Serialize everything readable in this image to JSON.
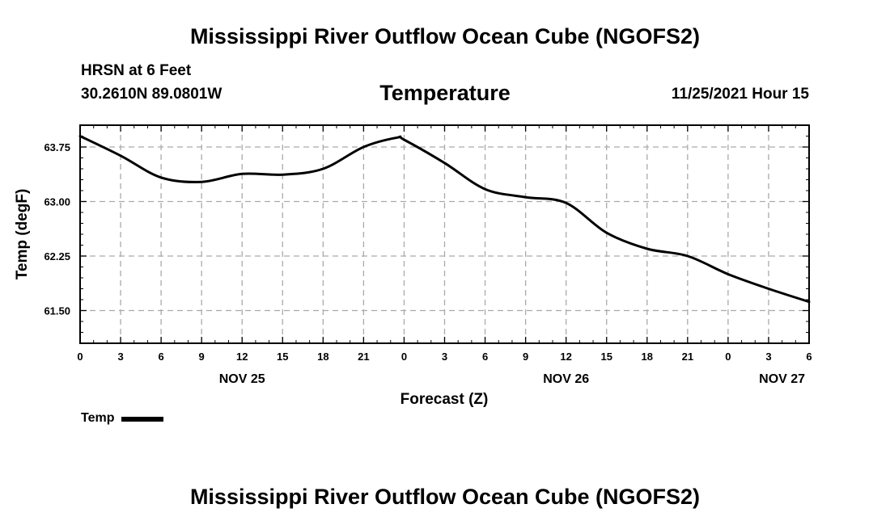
{
  "header": {
    "title": "Mississippi River Outflow Ocean Cube (NGOFS2)",
    "station": "HRSN at 6 Feet",
    "coords": "30.2610N  89.0801W",
    "parameter": "Temperature",
    "run_time": "11/25/2021 Hour 15"
  },
  "footer": {
    "title": "Mississippi River Outflow Ocean Cube (NGOFS2)"
  },
  "legend": {
    "label": "Temp",
    "color": "#000000"
  },
  "chart_data": {
    "type": "line",
    "title": "Temperature",
    "xlabel": "Forecast (Z)",
    "ylabel": "Temp (degF)",
    "xlim": [
      0,
      54
    ],
    "ylim": [
      61.05,
      64.05
    ],
    "grid": true,
    "x_ticks": [
      0,
      3,
      6,
      9,
      12,
      15,
      18,
      21,
      24,
      27,
      30,
      33,
      36,
      39,
      42,
      45,
      48,
      51,
      54
    ],
    "x_tick_labels": [
      "0",
      "3",
      "6",
      "9",
      "12",
      "15",
      "18",
      "21",
      "0",
      "3",
      "6",
      "9",
      "12",
      "15",
      "18",
      "21",
      "0",
      "3",
      "6"
    ],
    "date_labels": [
      {
        "x": 12,
        "label": "NOV 25"
      },
      {
        "x": 36,
        "label": "NOV 26"
      },
      {
        "x": 52,
        "label": "NOV 27"
      }
    ],
    "y_ticks": [
      61.5,
      62.25,
      63.0,
      63.75
    ],
    "y_tick_labels": [
      "61.50",
      "62.25",
      "63.00",
      "63.75"
    ],
    "series": [
      {
        "name": "Temp",
        "color": "#000000",
        "x": [
          0,
          3,
          6,
          9,
          12,
          15,
          18,
          21,
          23.5,
          24,
          27,
          30,
          33,
          36,
          39,
          42,
          45,
          48,
          51,
          54
        ],
        "values": [
          63.9,
          63.63,
          63.33,
          63.27,
          63.38,
          63.37,
          63.45,
          63.75,
          63.88,
          63.85,
          63.53,
          63.17,
          63.06,
          62.98,
          62.57,
          62.35,
          62.25,
          62.0,
          61.8,
          61.62
        ]
      }
    ]
  }
}
